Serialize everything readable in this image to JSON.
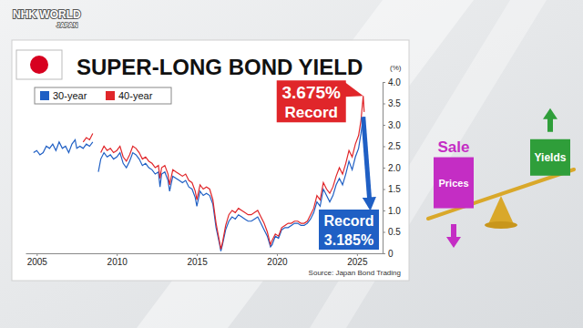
{
  "header": {
    "logo": "NHK WORLD",
    "logo_sub": "JAPAN"
  },
  "chart_data": {
    "type": "line",
    "title": "SUPER-LONG BOND YIELD",
    "ylabel": "(%)",
    "source": "Source: Japan Bond Trading",
    "x": [
      2004.8,
      2005.0,
      2005.2,
      2005.4,
      2005.6,
      2005.8,
      2006.0,
      2006.2,
      2006.4,
      2006.6,
      2006.8,
      2007.0,
      2007.2,
      2007.4,
      2007.5,
      2007.7,
      2007.9,
      2008.1,
      2008.3,
      2008.5,
      2008.7,
      2008.85,
      2009.0,
      2009.2,
      2009.4,
      2009.6,
      2009.8,
      2010.0,
      2010.2,
      2010.4,
      2010.6,
      2010.8,
      2011.0,
      2011.2,
      2011.4,
      2011.6,
      2011.8,
      2012.0,
      2012.2,
      2012.4,
      2012.6,
      2012.7,
      2012.8,
      2013.0,
      2013.2,
      2013.3,
      2013.5,
      2013.7,
      2013.9,
      2014.1,
      2014.3,
      2014.5,
      2014.7,
      2014.9,
      2015.0,
      2015.2,
      2015.4,
      2015.6,
      2015.8,
      2016.0,
      2016.2,
      2016.4,
      2016.5,
      2016.6,
      2016.8,
      2017.0,
      2017.2,
      2017.4,
      2017.6,
      2017.8,
      2018.0,
      2018.2,
      2018.4,
      2018.6,
      2018.8,
      2019.0,
      2019.2,
      2019.4,
      2019.6,
      2019.7,
      2019.9,
      2020.1,
      2020.3,
      2020.5,
      2020.7,
      2020.9,
      2021.1,
      2021.3,
      2021.5,
      2021.7,
      2021.9,
      2022.1,
      2022.3,
      2022.5,
      2022.7,
      2022.9,
      2023.1,
      2023.3,
      2023.5,
      2023.7,
      2023.9,
      2024.1,
      2024.3,
      2024.5,
      2024.7,
      2024.9,
      2025.1,
      2025.25,
      2025.39,
      2025.45
    ],
    "series": [
      {
        "name": "30-year",
        "color": "#1f5fc4",
        "values": [
          2.35,
          2.4,
          2.3,
          2.35,
          2.5,
          2.45,
          2.55,
          2.4,
          2.6,
          2.45,
          2.5,
          2.35,
          2.55,
          2.65,
          2.45,
          2.5,
          2.45,
          2.55,
          2.5,
          2.6,
          null,
          1.9,
          2.2,
          2.35,
          2.25,
          2.3,
          2.2,
          2.25,
          2.35,
          2.1,
          2.0,
          2.15,
          2.35,
          2.3,
          2.2,
          2.05,
          2.1,
          2.0,
          1.95,
          1.85,
          1.9,
          1.55,
          1.85,
          1.9,
          1.7,
          1.45,
          1.8,
          1.75,
          1.7,
          1.65,
          1.7,
          1.55,
          1.5,
          1.3,
          1.1,
          1.45,
          1.35,
          1.4,
          1.35,
          1.15,
          0.6,
          0.25,
          0.05,
          0.2,
          0.55,
          0.75,
          0.85,
          0.8,
          0.9,
          0.85,
          0.8,
          0.75,
          0.75,
          0.8,
          0.85,
          0.7,
          0.55,
          0.4,
          0.15,
          0.2,
          0.4,
          0.35,
          0.55,
          0.6,
          0.6,
          0.65,
          0.7,
          0.7,
          0.65,
          0.65,
          0.7,
          0.8,
          0.95,
          1.2,
          1.1,
          1.5,
          1.35,
          1.2,
          1.35,
          1.6,
          1.75,
          1.6,
          1.85,
          2.15,
          1.95,
          2.25,
          2.45,
          2.8,
          3.185,
          2.95
        ]
      },
      {
        "name": "40-year",
        "color": "#e0262a",
        "values": [
          null,
          null,
          null,
          null,
          null,
          null,
          null,
          null,
          null,
          null,
          null,
          null,
          null,
          null,
          null,
          null,
          2.6,
          2.7,
          2.65,
          2.8,
          null,
          null,
          2.35,
          2.5,
          2.4,
          2.45,
          2.35,
          2.4,
          2.5,
          2.25,
          2.15,
          2.3,
          2.5,
          2.45,
          2.35,
          2.2,
          2.25,
          2.15,
          2.1,
          2.0,
          2.05,
          1.75,
          2.0,
          2.05,
          1.85,
          1.6,
          1.95,
          1.9,
          1.85,
          1.8,
          1.85,
          1.7,
          1.65,
          1.45,
          1.25,
          1.6,
          1.5,
          1.55,
          1.5,
          1.25,
          0.7,
          0.3,
          0.1,
          0.25,
          0.65,
          0.9,
          1.0,
          0.95,
          1.05,
          1.0,
          0.95,
          0.9,
          0.9,
          0.95,
          1.0,
          0.85,
          0.7,
          0.5,
          0.2,
          0.3,
          0.45,
          0.4,
          0.6,
          0.65,
          0.7,
          0.7,
          0.75,
          0.75,
          0.7,
          0.7,
          0.75,
          0.9,
          1.05,
          1.35,
          1.25,
          1.65,
          1.5,
          1.4,
          1.55,
          1.8,
          2.0,
          1.85,
          2.1,
          2.4,
          2.25,
          2.55,
          2.75,
          3.1,
          3.675,
          3.3
        ]
      }
    ],
    "xlim": [
      2004.3,
      2026.6
    ],
    "xticks": [
      2005,
      2010,
      2015,
      2020,
      2025
    ],
    "ylim": [
      0,
      4
    ],
    "yticks": [
      0,
      0.5,
      {
        "value": 1,
        "label": "1.0"
      },
      1.5,
      {
        "value": 2,
        "label": "2.0"
      },
      2.5,
      {
        "value": 3,
        "label": "3.0"
      },
      3.5,
      {
        "value": 4,
        "label": "4.0"
      }
    ],
    "grid": false,
    "legend": "top left",
    "annotations": [
      {
        "label": "3.675%",
        "text": "Record",
        "x": 2025.39,
        "value": 3.675,
        "color": "#e0262a"
      },
      {
        "label": "3.185%",
        "text": "Record",
        "x": 2025.39,
        "value": 3.185,
        "color": "#1f5fc4"
      }
    ]
  },
  "diagram": {
    "left_label": "Sale",
    "left_box": "Prices",
    "right_box": "Yields"
  }
}
